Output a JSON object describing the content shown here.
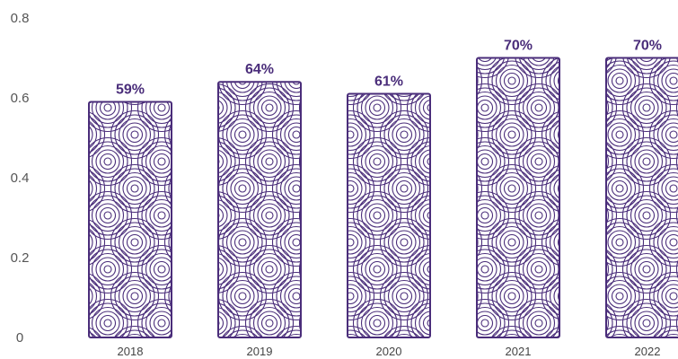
{
  "chart_data": {
    "type": "bar",
    "categories": [
      "2018",
      "2019",
      "2020",
      "2021",
      "2022"
    ],
    "values": [
      0.59,
      0.64,
      0.61,
      0.7,
      0.7
    ],
    "data_labels": [
      "59%",
      "64%",
      "61%",
      "70%",
      "70%"
    ],
    "ylim": [
      0,
      0.8
    ],
    "yticks": [
      "0",
      "0.2",
      "0.4",
      "0.6",
      "0.8"
    ],
    "grid": false,
    "bar_color": "#4a2d7a",
    "bar_fill": "#ffffff",
    "bar_pattern": "concentric-arc-pattern"
  }
}
